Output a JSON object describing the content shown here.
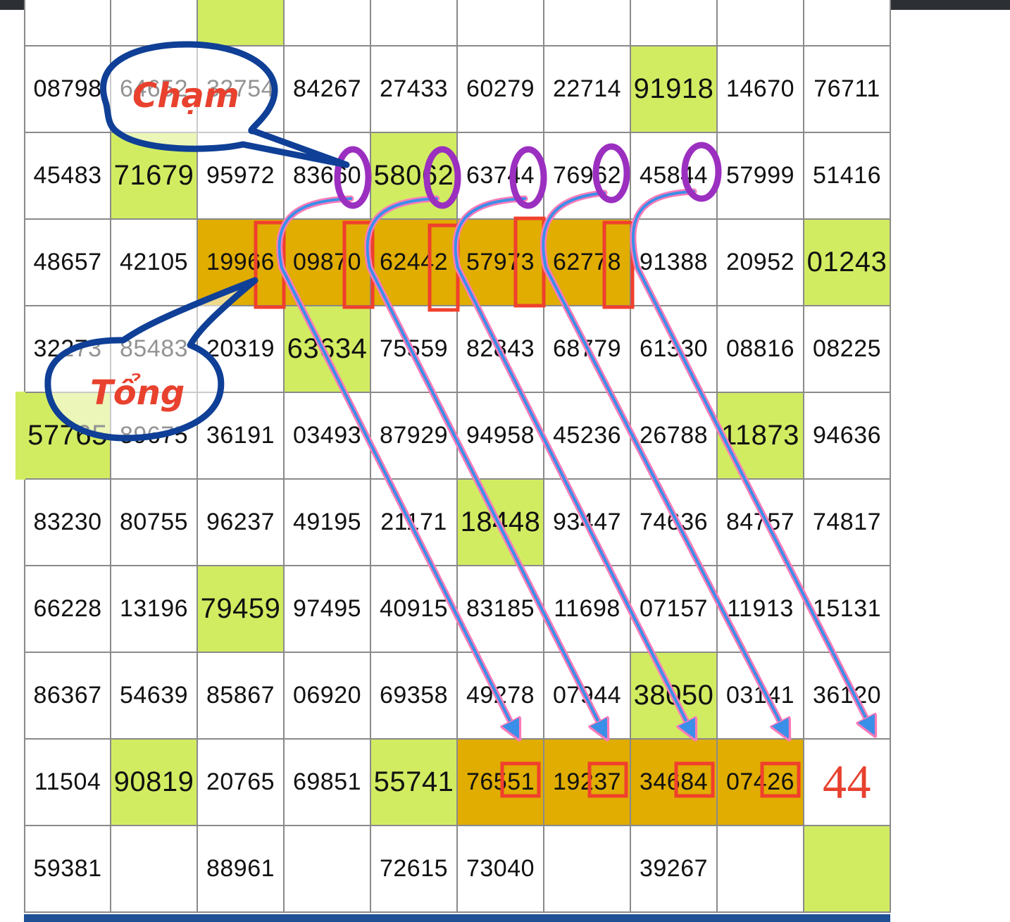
{
  "colors": {
    "green": "#d2ec62",
    "gold": "#e0ad00",
    "border": "#8a8a8a",
    "highlight_box": "#f0402d",
    "circle": "#9b2fc0",
    "arrow_blue": "#3a8fe8",
    "arrow_pink": "#ff7ab8",
    "bubble": "#0f3f96",
    "label_text": "#e8412e"
  },
  "labels": {
    "cham": "Chạm",
    "tong": "Tổng"
  },
  "forecast": "44",
  "rows": [
    {
      "cells": [
        {
          "v": "",
          "s": ""
        },
        {
          "v": "",
          "s": ""
        },
        {
          "v": "",
          "s": "green"
        },
        {
          "v": "",
          "s": ""
        },
        {
          "v": "",
          "s": ""
        },
        {
          "v": "",
          "s": ""
        },
        {
          "v": "",
          "s": ""
        },
        {
          "v": "",
          "s": ""
        },
        {
          "v": "",
          "s": ""
        },
        {
          "v": "",
          "s": ""
        }
      ]
    },
    {
      "cells": [
        {
          "v": "08798",
          "s": ""
        },
        {
          "v": "64652",
          "s": ""
        },
        {
          "v": "32754",
          "s": ""
        },
        {
          "v": "84267",
          "s": ""
        },
        {
          "v": "27433",
          "s": ""
        },
        {
          "v": "60279",
          "s": ""
        },
        {
          "v": "22714",
          "s": ""
        },
        {
          "v": "91918",
          "s": "green"
        },
        {
          "v": "14670",
          "s": ""
        },
        {
          "v": "76711",
          "s": ""
        }
      ]
    },
    {
      "cells": [
        {
          "v": "45483",
          "s": ""
        },
        {
          "v": "71679",
          "s": "green"
        },
        {
          "v": "95972",
          "s": ""
        },
        {
          "v": "83660",
          "s": ""
        },
        {
          "v": "58062",
          "s": "green"
        },
        {
          "v": "63744",
          "s": ""
        },
        {
          "v": "76962",
          "s": ""
        },
        {
          "v": "45844",
          "s": ""
        },
        {
          "v": "57999",
          "s": ""
        },
        {
          "v": "51416",
          "s": ""
        }
      ]
    },
    {
      "cells": [
        {
          "v": "48657",
          "s": ""
        },
        {
          "v": "42105",
          "s": ""
        },
        {
          "v": "19966",
          "s": "gold"
        },
        {
          "v": "09870",
          "s": "gold"
        },
        {
          "v": "62442",
          "s": "gold"
        },
        {
          "v": "57973",
          "s": "gold"
        },
        {
          "v": "62778",
          "s": "gold"
        },
        {
          "v": "91388",
          "s": ""
        },
        {
          "v": "20952",
          "s": ""
        },
        {
          "v": "01243",
          "s": "green"
        }
      ]
    },
    {
      "cells": [
        {
          "v": "32273",
          "s": ""
        },
        {
          "v": "85483",
          "s": ""
        },
        {
          "v": "20319",
          "s": ""
        },
        {
          "v": "63634",
          "s": "green"
        },
        {
          "v": "75559",
          "s": ""
        },
        {
          "v": "82843",
          "s": ""
        },
        {
          "v": "68779",
          "s": ""
        },
        {
          "v": "61330",
          "s": ""
        },
        {
          "v": "08816",
          "s": ""
        },
        {
          "v": "08225",
          "s": ""
        }
      ]
    },
    {
      "cells": [
        {
          "v": "57765",
          "s": "green"
        },
        {
          "v": "89675",
          "s": ""
        },
        {
          "v": "36191",
          "s": ""
        },
        {
          "v": "03493",
          "s": ""
        },
        {
          "v": "87929",
          "s": ""
        },
        {
          "v": "94958",
          "s": ""
        },
        {
          "v": "45236",
          "s": ""
        },
        {
          "v": "26788",
          "s": ""
        },
        {
          "v": "11873",
          "s": "green"
        },
        {
          "v": "94636",
          "s": ""
        }
      ]
    },
    {
      "cells": [
        {
          "v": "83230",
          "s": ""
        },
        {
          "v": "80755",
          "s": ""
        },
        {
          "v": "96237",
          "s": ""
        },
        {
          "v": "49195",
          "s": ""
        },
        {
          "v": "21171",
          "s": ""
        },
        {
          "v": "18448",
          "s": "green"
        },
        {
          "v": "93447",
          "s": ""
        },
        {
          "v": "74636",
          "s": ""
        },
        {
          "v": "84757",
          "s": ""
        },
        {
          "v": "74817",
          "s": ""
        }
      ]
    },
    {
      "cells": [
        {
          "v": "66228",
          "s": ""
        },
        {
          "v": "13196",
          "s": ""
        },
        {
          "v": "79459",
          "s": "green"
        },
        {
          "v": "97495",
          "s": ""
        },
        {
          "v": "40915",
          "s": ""
        },
        {
          "v": "83185",
          "s": ""
        },
        {
          "v": "11698",
          "s": ""
        },
        {
          "v": "07157",
          "s": ""
        },
        {
          "v": "11913",
          "s": ""
        },
        {
          "v": "15131",
          "s": ""
        }
      ]
    },
    {
      "cells": [
        {
          "v": "86367",
          "s": ""
        },
        {
          "v": "54639",
          "s": ""
        },
        {
          "v": "85867",
          "s": ""
        },
        {
          "v": "06920",
          "s": ""
        },
        {
          "v": "69358",
          "s": ""
        },
        {
          "v": "49278",
          "s": ""
        },
        {
          "v": "07944",
          "s": ""
        },
        {
          "v": "38050",
          "s": "green"
        },
        {
          "v": "03141",
          "s": ""
        },
        {
          "v": "36120",
          "s": ""
        }
      ]
    },
    {
      "cells": [
        {
          "v": "11504",
          "s": ""
        },
        {
          "v": "90819",
          "s": "green"
        },
        {
          "v": "20765",
          "s": ""
        },
        {
          "v": "69851",
          "s": ""
        },
        {
          "v": "55741",
          "s": "green"
        },
        {
          "v": "76551",
          "s": "gold"
        },
        {
          "v": "19237",
          "s": "gold"
        },
        {
          "v": "34684",
          "s": "gold"
        },
        {
          "v": "07426",
          "s": "gold"
        },
        {
          "v": "",
          "s": "forecast"
        }
      ]
    },
    {
      "cells": [
        {
          "v": "59381",
          "s": ""
        },
        {
          "v": "",
          "s": ""
        },
        {
          "v": "88961",
          "s": ""
        },
        {
          "v": "",
          "s": ""
        },
        {
          "v": "72615",
          "s": ""
        },
        {
          "v": "73040",
          "s": ""
        },
        {
          "v": "",
          "s": ""
        },
        {
          "v": "39267",
          "s": ""
        },
        {
          "v": "",
          "s": ""
        },
        {
          "v": "",
          "s": "green"
        }
      ]
    }
  ]
}
